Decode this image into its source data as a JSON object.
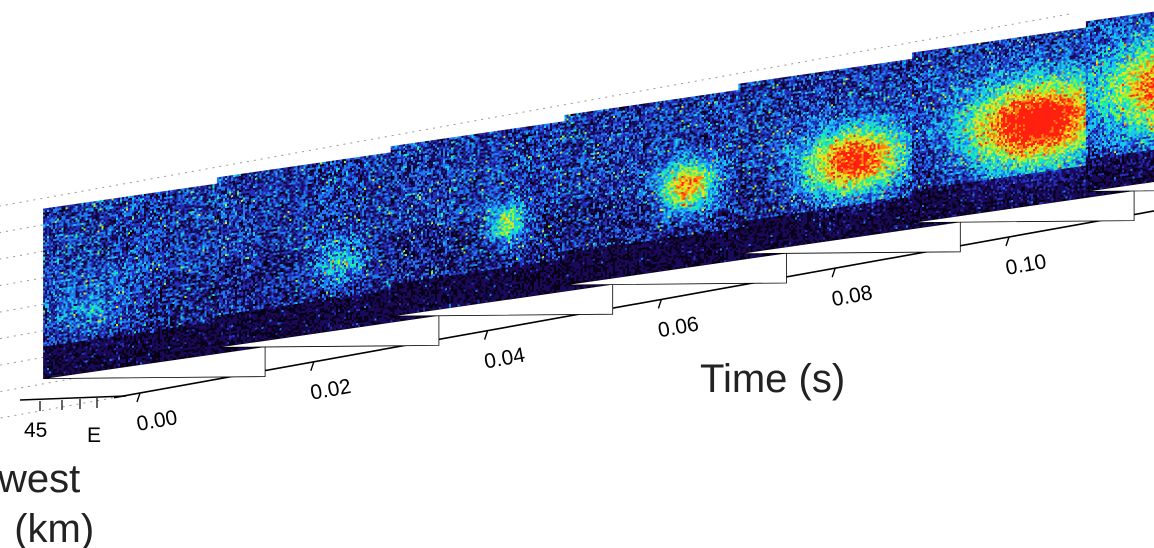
{
  "chart_data": {
    "type": "heatmap",
    "title": "",
    "xlabel": "Time (s)",
    "x": [
      0.0,
      0.02,
      0.04,
      0.06,
      0.08,
      0.1
    ],
    "x_tick_labels": [
      "0.00",
      "0.02",
      "0.04",
      "0.06",
      "0.08",
      "0.10"
    ],
    "xlim": [
      0.0,
      0.11
    ],
    "secondary_axis": {
      "label_lines": [
        "west",
        ": (km)"
      ],
      "tick_labels": [
        "45",
        "E"
      ]
    },
    "series": [
      {
        "time": -0.01,
        "peak_intensity": 0.18,
        "source_center": [
          0.2,
          0.62
        ],
        "source_spread": [
          0.14,
          0.12
        ]
      },
      {
        "time": 0.01,
        "peak_intensity": 0.28,
        "source_center": [
          0.55,
          0.6
        ],
        "source_spread": [
          0.08,
          0.08
        ]
      },
      {
        "time": 0.03,
        "peak_intensity": 0.42,
        "source_center": [
          0.52,
          0.55
        ],
        "source_spread": [
          0.06,
          0.08
        ]
      },
      {
        "time": 0.05,
        "peak_intensity": 0.62,
        "source_center": [
          0.55,
          0.52
        ],
        "source_spread": [
          0.09,
          0.1
        ]
      },
      {
        "time": 0.07,
        "peak_intensity": 0.78,
        "source_center": [
          0.52,
          0.55
        ],
        "source_spread": [
          0.16,
          0.13
        ]
      },
      {
        "time": 0.09,
        "peak_intensity": 0.9,
        "source_center": [
          0.56,
          0.52
        ],
        "source_spread": [
          0.22,
          0.17
        ]
      },
      {
        "time": 0.11,
        "peak_intensity": 0.95,
        "source_center": [
          0.55,
          0.45
        ],
        "source_spread": [
          0.3,
          0.2
        ]
      }
    ],
    "colormap": [
      "#080018",
      "#1a0a5c",
      "#2430b8",
      "#1e7cf0",
      "#18c8f0",
      "#1ef0a0",
      "#a0f030",
      "#f0e020",
      "#ff8010",
      "#ff2010"
    ],
    "grid": true,
    "legend": "none"
  }
}
